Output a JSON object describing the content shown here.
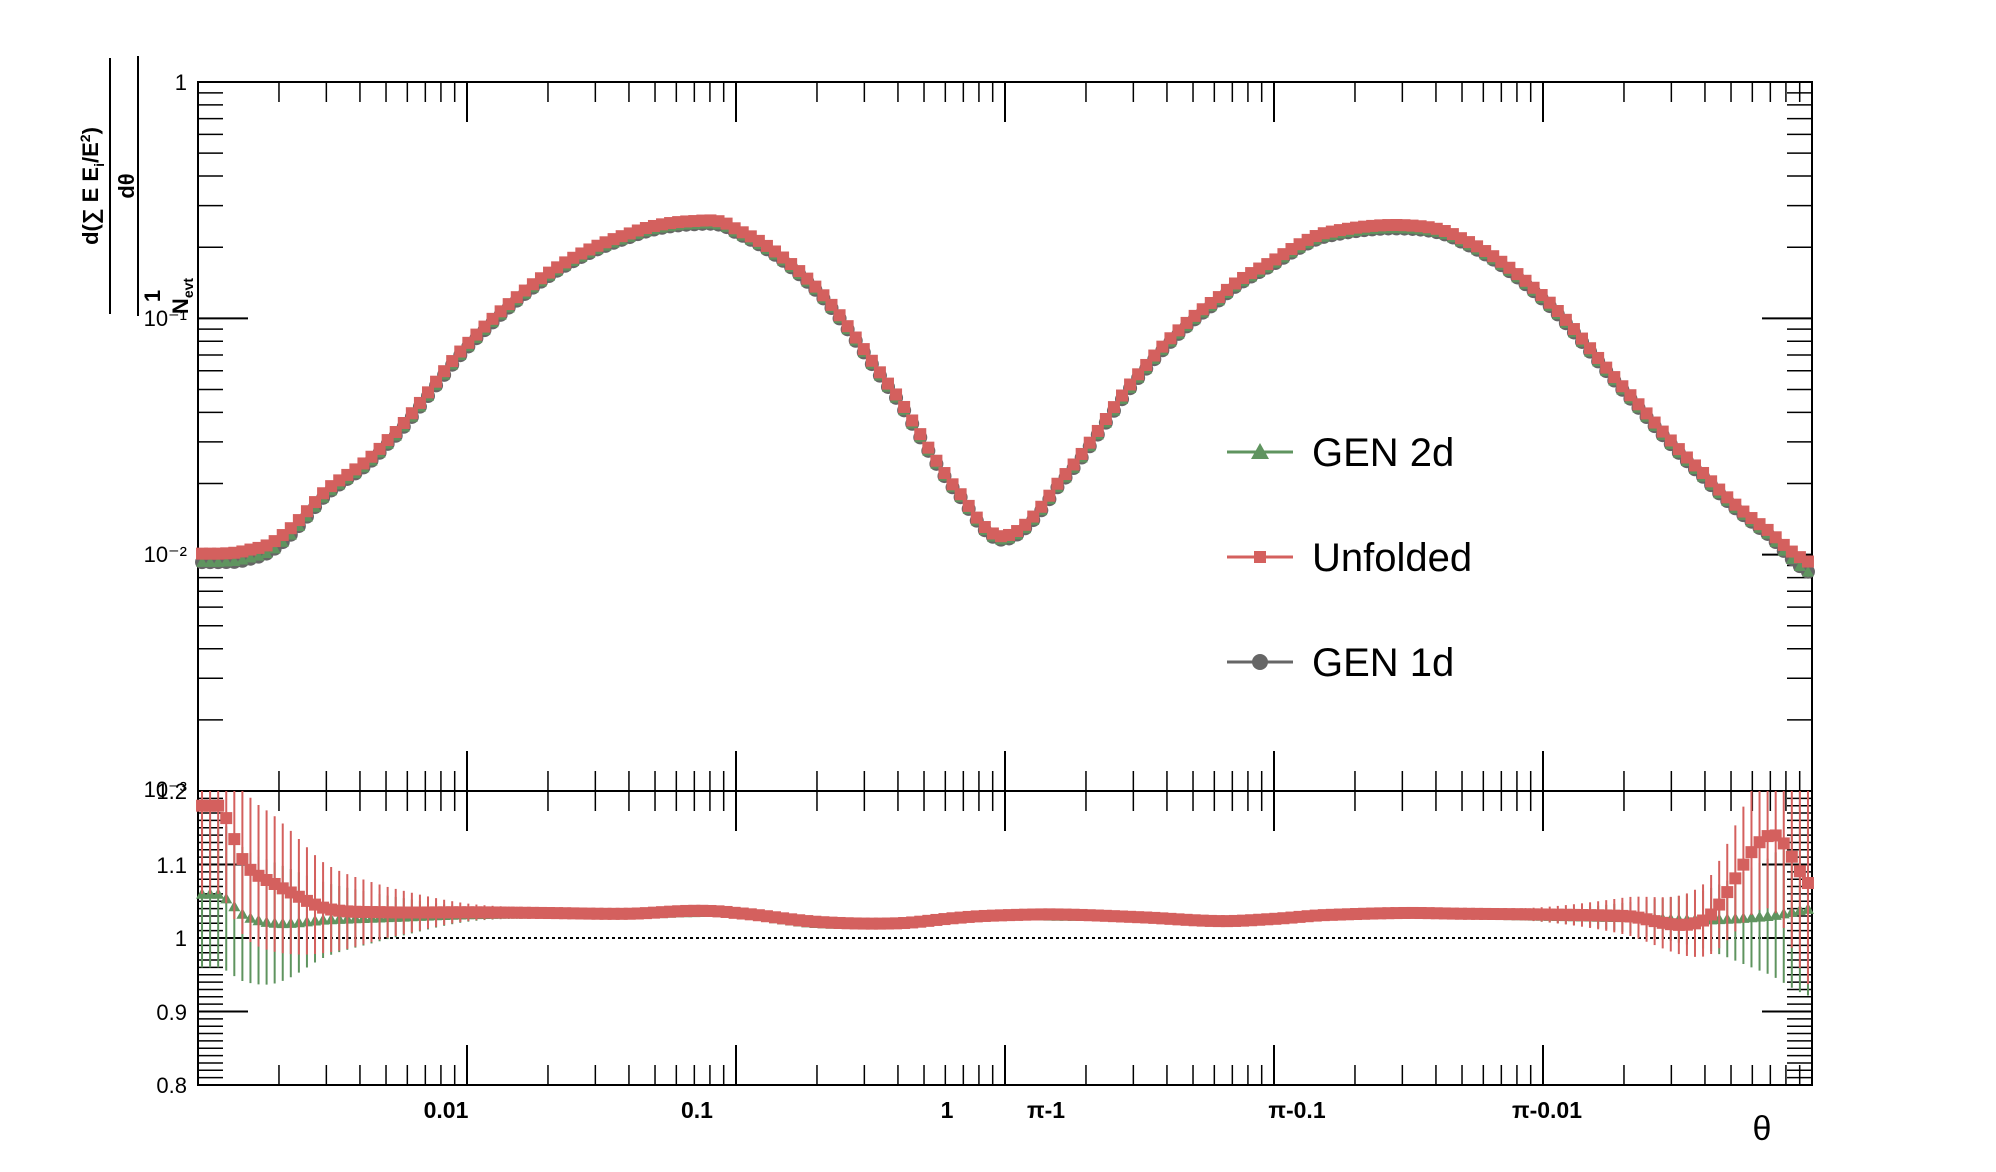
{
  "chart_data": [
    {
      "type": "scatter",
      "panel": "upper",
      "ylabel": "1/N_evt · d(∑ E E_i/E²)/dθ",
      "yscale": "log",
      "ylim": [
        0.001,
        1
      ],
      "ytick_labels": [
        "1",
        "10⁻¹",
        "10⁻²",
        "10⁻³"
      ],
      "legend": {
        "position": "right-center",
        "entries": [
          "GEN 2d",
          "Unfolded",
          "GEN 1d"
        ]
      },
      "x_units": "u, where u = θ for θ ≤ 1 and u = 1/(π−θ) for θ > 1",
      "series": [
        {
          "name": "GEN 2d",
          "color": "#5f945f",
          "marker": "triangle",
          "x": [
            0.0012,
            0.0015,
            0.002,
            0.003,
            0.005,
            0.01,
            0.02,
            0.04,
            0.07,
            0.1,
            0.2,
            0.4,
            0.7,
            1.0,
            1.6,
            3.3,
            6.3,
            10,
            15,
            30,
            50,
            100,
            200,
            400,
            700,
            1000
          ],
          "y": [
            0.0093,
            0.0096,
            0.011,
            0.018,
            0.029,
            0.075,
            0.15,
            0.22,
            0.25,
            0.23,
            0.13,
            0.045,
            0.017,
            0.0116,
            0.02,
            0.06,
            0.12,
            0.17,
            0.22,
            0.24,
            0.21,
            0.12,
            0.049,
            0.021,
            0.012,
            0.0083
          ]
        },
        {
          "name": "Unfolded",
          "color": "#d4605e",
          "marker": "square",
          "x": [
            0.0012,
            0.0015,
            0.002,
            0.003,
            0.005,
            0.01,
            0.02,
            0.04,
            0.07,
            0.1,
            0.2,
            0.4,
            0.7,
            1.0,
            1.6,
            3.3,
            6.3,
            10,
            15,
            30,
            50,
            100,
            200,
            400,
            700,
            1000
          ],
          "y": [
            0.0101,
            0.0104,
            0.0118,
            0.0188,
            0.0301,
            0.0777,
            0.155,
            0.228,
            0.258,
            0.238,
            0.134,
            0.0465,
            0.0175,
            0.012,
            0.0207,
            0.0622,
            0.124,
            0.176,
            0.228,
            0.248,
            0.217,
            0.124,
            0.0507,
            0.0218,
            0.0125,
            0.0092
          ]
        },
        {
          "name": "GEN 1d",
          "color": "#666666",
          "marker": "circle",
          "x": [
            0.0012,
            0.0015,
            0.002,
            0.003,
            0.005,
            0.01,
            0.02,
            0.04,
            0.07,
            0.1,
            0.2,
            0.4,
            0.7,
            1.0,
            1.6,
            3.3,
            6.3,
            10,
            15,
            30,
            50,
            100,
            200,
            400,
            700,
            1000
          ],
          "y": [
            0.0093,
            0.0095,
            0.011,
            0.018,
            0.029,
            0.075,
            0.15,
            0.22,
            0.25,
            0.23,
            0.13,
            0.045,
            0.017,
            0.0116,
            0.02,
            0.06,
            0.12,
            0.17,
            0.22,
            0.24,
            0.21,
            0.12,
            0.049,
            0.021,
            0.012,
            0.0083
          ]
        }
      ]
    },
    {
      "type": "scatter",
      "panel": "lower",
      "xlabel": "θ",
      "xscale": "log",
      "xlim": [
        0.001,
        1000
      ],
      "xtick_labels": [
        "0.01",
        "0.1",
        "1",
        "π-1",
        "π-0.1",
        "π-0.01"
      ],
      "ylim": [
        0.8,
        1.2
      ],
      "ytick_labels": [
        "1.2",
        "1.1",
        "1",
        "0.9",
        "0.8"
      ],
      "reference_line": 1.0,
      "series": [
        {
          "name": "GEN 2d",
          "color": "#5f945f",
          "marker": "triangle",
          "x": [
            0.0012,
            0.0015,
            0.002,
            0.003,
            0.005,
            0.01,
            0.02,
            0.04,
            0.07,
            0.1,
            0.2,
            0.4,
            0.7,
            1.0,
            1.6,
            3.3,
            6.3,
            10,
            15,
            30,
            50,
            100,
            200,
            400,
            700,
            1000
          ],
          "y": [
            1.06,
            1.03,
            1.02,
            1.025,
            1.028,
            1.032,
            1.033,
            1.032,
            1.035,
            1.033,
            1.02,
            1.02,
            1.027,
            1.03,
            1.03,
            1.028,
            1.022,
            1.025,
            1.03,
            1.033,
            1.032,
            1.03,
            1.028,
            1.025,
            1.03,
            1.04
          ],
          "err": [
            0.1,
            0.09,
            0.08,
            0.05,
            0.03,
            0.01,
            0.006,
            0.004,
            0.003,
            0.003,
            0.003,
            0.003,
            0.003,
            0.003,
            0.003,
            0.003,
            0.003,
            0.003,
            0.003,
            0.004,
            0.005,
            0.008,
            0.02,
            0.04,
            0.08,
            0.12
          ]
        },
        {
          "name": "Unfolded",
          "color": "#d4605e",
          "marker": "square",
          "x": [
            0.0012,
            0.0015,
            0.002,
            0.003,
            0.005,
            0.01,
            0.02,
            0.04,
            0.07,
            0.1,
            0.2,
            0.4,
            0.7,
            1.0,
            1.6,
            3.3,
            6.3,
            10,
            15,
            30,
            50,
            100,
            200,
            400,
            700,
            1000
          ],
          "y": [
            1.18,
            1.1,
            1.07,
            1.04,
            1.035,
            1.035,
            1.034,
            1.033,
            1.037,
            1.034,
            1.022,
            1.02,
            1.028,
            1.031,
            1.032,
            1.028,
            1.023,
            1.026,
            1.031,
            1.034,
            1.033,
            1.032,
            1.03,
            1.025,
            1.14,
            1.07
          ],
          "err": [
            0.12,
            0.1,
            0.09,
            0.06,
            0.035,
            0.012,
            0.007,
            0.004,
            0.003,
            0.003,
            0.003,
            0.003,
            0.003,
            0.003,
            0.003,
            0.003,
            0.003,
            0.003,
            0.003,
            0.004,
            0.006,
            0.01,
            0.025,
            0.05,
            0.1,
            0.14
          ]
        }
      ]
    }
  ]
}
